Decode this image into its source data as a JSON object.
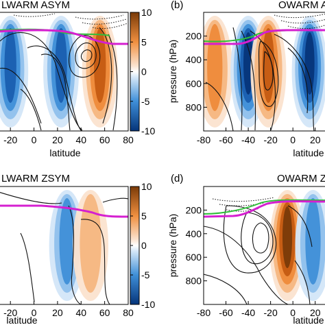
{
  "chart_data": [
    {
      "type": "heatmap",
      "title": "LWARM ASYM",
      "xlabel": "latitude",
      "ylabel": "",
      "xlim": [
        -30,
        80
      ],
      "xticks": [
        -20,
        0,
        20,
        40,
        60,
        80
      ],
      "yticks": [],
      "colorbar": {
        "range": [
          -10,
          10
        ],
        "ticks": [
          10,
          5,
          0,
          -5,
          -10
        ]
      },
      "features": {
        "bands": [
          {
            "x": -20,
            "sign": -1,
            "level": 0.8
          },
          {
            "x": 23,
            "sign": -1,
            "level": 0.7
          },
          {
            "x": 56,
            "sign": 1,
            "level": 0.8
          }
        ],
        "dotted_contours": "upper levels 30-80 lat",
        "tropopause_line": "magenta",
        "green_line": "green"
      }
    },
    {
      "type": "heatmap",
      "panel_label": "(b)",
      "title": "OWARM ASYM",
      "xlabel": "latitude",
      "ylabel": "pressure (hPa)",
      "xlim": [
        -80,
        30
      ],
      "ylim": [
        1000,
        0
      ],
      "xticks": [
        -80,
        -60,
        -40,
        -20,
        0,
        20
      ],
      "yticks": [
        200,
        400,
        600,
        800
      ],
      "features": {
        "bands": [
          {
            "x": -70,
            "sign": 1,
            "level": 0.5
          },
          {
            "x": -40,
            "sign": -1,
            "level": 0.9
          },
          {
            "x": -22,
            "sign": 1,
            "level": 0.8
          },
          {
            "x": 15,
            "sign": -1,
            "level": 0.9
          }
        ],
        "tropopause_line": "magenta"
      }
    },
    {
      "type": "heatmap",
      "title": "LWARM ZSYM",
      "xlabel": "latitude",
      "ylabel": "",
      "xlim": [
        -30,
        80
      ],
      "xticks": [
        -20,
        0,
        20,
        40,
        60,
        80
      ],
      "yticks": [],
      "colorbar": {
        "range": [
          -10,
          10
        ],
        "ticks": [
          10,
          5,
          0,
          -5,
          -10
        ]
      },
      "features": {
        "bands": [
          {
            "x": 28,
            "sign": -1,
            "level": 0.5
          },
          {
            "x": 48,
            "sign": 1,
            "level": 0.3
          }
        ],
        "tropopause_line": "magenta"
      }
    },
    {
      "type": "heatmap",
      "panel_label": "(d)",
      "title": "OWARM ZSYM",
      "xlabel": "latitude",
      "ylabel": "pressure (hPa)",
      "xlim": [
        -80,
        30
      ],
      "ylim": [
        1000,
        0
      ],
      "xticks": [
        -80,
        -60,
        -40,
        -20,
        0,
        20
      ],
      "yticks": [
        200,
        400,
        600,
        800
      ],
      "features": {
        "bands": [
          {
            "x": -5,
            "sign": 1,
            "level": 0.9
          },
          {
            "x": 18,
            "sign": -1,
            "level": 0.6
          }
        ],
        "tropopause_line": "magenta"
      }
    }
  ]
}
